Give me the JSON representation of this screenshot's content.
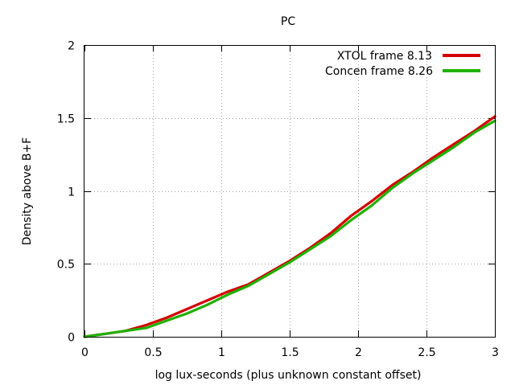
{
  "chart_data": {
    "type": "line",
    "title": "PC",
    "xlabel": "log lux-seconds (plus unknown constant offset)",
    "ylabel": "Density above B+F",
    "xlim": [
      0,
      3
    ],
    "ylim": [
      0,
      2
    ],
    "xticks": [
      0,
      0.5,
      1,
      1.5,
      2,
      2.5,
      3
    ],
    "xtick_labels": [
      "0",
      "0.5",
      "1",
      "1.5",
      "2",
      "2.5",
      "3"
    ],
    "yticks": [
      0,
      0.5,
      1,
      1.5,
      2
    ],
    "ytick_labels": [
      "0",
      "0.5",
      "1",
      "1.5",
      "2"
    ],
    "grid": true,
    "legend_position": "top-right",
    "series": [
      {
        "name": "XTOL frame 8.13",
        "color": "#d40000",
        "x": [
          0,
          0.15,
          0.3,
          0.45,
          0.6,
          0.75,
          0.9,
          1.05,
          1.2,
          1.35,
          1.5,
          1.65,
          1.8,
          1.95,
          2.1,
          2.25,
          2.4,
          2.55,
          2.7,
          2.85,
          3.0
        ],
        "y": [
          0,
          0.02,
          0.04,
          0.08,
          0.13,
          0.19,
          0.25,
          0.31,
          0.36,
          0.44,
          0.52,
          0.61,
          0.71,
          0.83,
          0.93,
          1.04,
          1.13,
          1.23,
          1.32,
          1.41,
          1.51
        ]
      },
      {
        "name": "Concen frame 8.26",
        "color": "#20b000",
        "x": [
          0,
          0.15,
          0.3,
          0.45,
          0.6,
          0.75,
          0.9,
          1.05,
          1.2,
          1.35,
          1.5,
          1.65,
          1.8,
          1.95,
          2.1,
          2.25,
          2.4,
          2.55,
          2.7,
          2.85,
          3.0
        ],
        "y": [
          0,
          0.02,
          0.04,
          0.06,
          0.11,
          0.16,
          0.22,
          0.29,
          0.35,
          0.43,
          0.51,
          0.6,
          0.69,
          0.8,
          0.9,
          1.02,
          1.12,
          1.21,
          1.3,
          1.4,
          1.48
        ]
      }
    ]
  }
}
